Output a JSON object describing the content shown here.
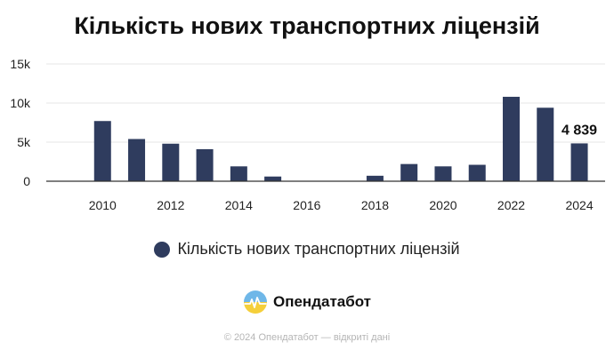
{
  "colors": {
    "bar": "#2f3c5e",
    "grid": "#e6e6e6",
    "axis": "#333333",
    "text": "#222222",
    "logo_top": "#6fb7e8",
    "logo_bottom": "#f5cf3a"
  },
  "brand": {
    "name": "Опендатабот",
    "icon": "opendatabot-logo-icon"
  },
  "footer": "© 2024 Опендатабот — відкриті дані",
  "chart_data": {
    "type": "bar",
    "title": "Кількість нових транспортних ліцензій",
    "xlabel": "",
    "ylabel": "",
    "categories": [
      "2009",
      "2010",
      "2011",
      "2012",
      "2013",
      "2014",
      "2015",
      "2016",
      "2017",
      "2018",
      "2019",
      "2020",
      "2021",
      "2022",
      "2023",
      "2024"
    ],
    "series": [
      {
        "name": "Кількість нових транспортних ліцензій",
        "values": [
          null,
          7700,
          5400,
          4800,
          4100,
          1900,
          600,
          null,
          null,
          700,
          2200,
          1900,
          2100,
          10800,
          9400,
          4839
        ]
      }
    ],
    "x_tick_labels": [
      "2010",
      "2012",
      "2014",
      "2016",
      "2018",
      "2020",
      "2022",
      "2024"
    ],
    "y_ticks": [
      {
        "value": 0,
        "label": "0"
      },
      {
        "value": 5000,
        "label": "5k"
      },
      {
        "value": 10000,
        "label": "10k"
      },
      {
        "value": 15000,
        "label": "15k"
      }
    ],
    "ylim": [
      0,
      15000
    ],
    "data_labels": [
      {
        "category": "2024",
        "text": "4 839"
      }
    ],
    "grid": true,
    "legend": "bottom-center"
  }
}
